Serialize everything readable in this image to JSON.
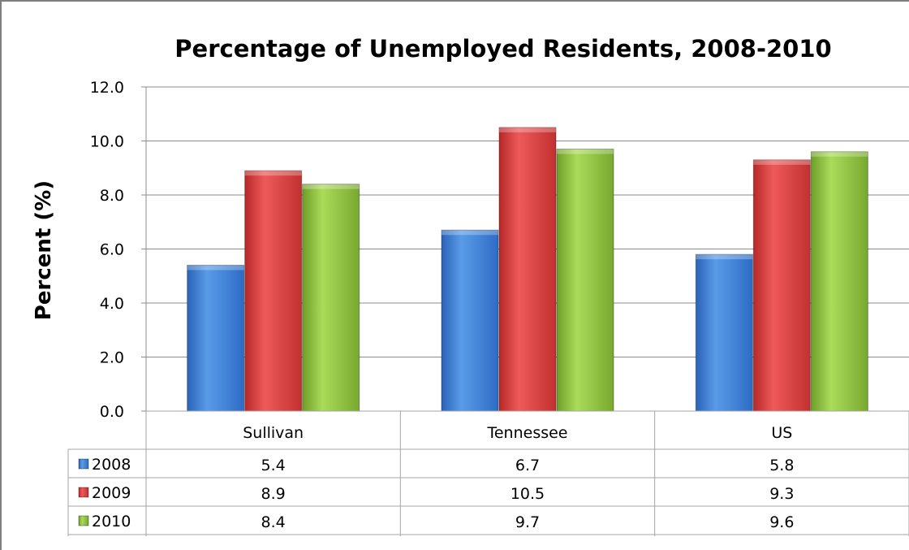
{
  "chart_data": {
    "type": "bar",
    "title": "Percentage of Unemployed Residents, 2008-2010",
    "ylabel": "Percent (%)",
    "xlabel": "",
    "categories": [
      "Sullivan",
      "Tennessee",
      "US"
    ],
    "ylim": [
      0,
      12
    ],
    "yticks": [
      "0.0",
      "2.0",
      "4.0",
      "6.0",
      "8.0",
      "10.0",
      "12.0"
    ],
    "grid": true,
    "legend": "data-table",
    "series": [
      {
        "name": "2008",
        "values": [
          5.4,
          6.7,
          5.8
        ],
        "labels": [
          "5.4",
          "6.7",
          "5.8"
        ],
        "color": "#3a7bd5"
      },
      {
        "name": "2009",
        "values": [
          8.9,
          10.5,
          9.3
        ],
        "labels": [
          "8.9",
          "10.5",
          "9.3"
        ],
        "color": "#d63b3b"
      },
      {
        "name": "2010",
        "values": [
          8.4,
          9.7,
          9.6
        ],
        "labels": [
          "8.4",
          "9.7",
          "9.6"
        ],
        "color": "#8dbf3e"
      }
    ]
  }
}
